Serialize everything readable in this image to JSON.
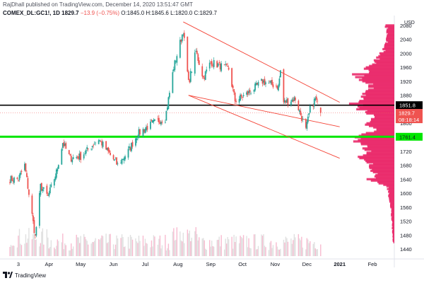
{
  "header": {
    "publisher": "RajDhall published on TradingView.com, December 14, 2020 13:51:47 GMT",
    "symbol": "COMEX_DL:GC1!, 1D",
    "last": "1829.7",
    "change": "−13.9 (−0.75%)",
    "open": "O:1845.0",
    "high": "H:1845.6",
    "low": "L:1820.0",
    "close": "C:1829.7"
  },
  "footer": {
    "brand": "TradingView"
  },
  "colors": {
    "up": "#26a69a",
    "down": "#ef5350",
    "volume_profile": "#e91e63",
    "resistance": "#000000",
    "support": "#00e600",
    "channel": "#f44336"
  },
  "chart_data": {
    "type": "candlestick",
    "currency": "USD",
    "ylim": [
      1420,
      2100
    ],
    "y_ticks": [
      1440,
      1480,
      1520,
      1560,
      1600,
      1640,
      1680,
      1720,
      1760,
      1800,
      1840,
      1880,
      1920,
      1960,
      2000,
      2040,
      2080
    ],
    "x_ticks": [
      "3",
      "Apr",
      "May",
      "Jun",
      "Jul",
      "Aug",
      "Sep",
      "Oct",
      "Nov",
      "Dec",
      "2021",
      "Feb"
    ],
    "horizontal_levels": [
      {
        "name": "resistance",
        "price": 1851.8,
        "label": "1851.8"
      },
      {
        "name": "support",
        "price": 1761.4,
        "label": "1761.4"
      }
    ],
    "price_labels": [
      {
        "name": "last-price",
        "value": "1829.7"
      },
      {
        "name": "bar-countdown",
        "value": "08:18:14"
      }
    ],
    "ohlc_anchors": [
      [
        "2020-02-24",
        1640
      ],
      [
        "2020-03-03",
        1640
      ],
      [
        "2020-03-09",
        1680
      ],
      [
        "2020-03-19",
        1475
      ],
      [
        "2020-03-24",
        1620
      ],
      [
        "2020-03-31",
        1590
      ],
      [
        "2020-04-08",
        1660
      ],
      [
        "2020-04-14",
        1745
      ],
      [
        "2020-04-21",
        1700
      ],
      [
        "2020-05-01",
        1705
      ],
      [
        "2020-05-18",
        1755
      ],
      [
        "2020-06-05",
        1680
      ],
      [
        "2020-06-15",
        1720
      ],
      [
        "2020-06-24",
        1770
      ],
      [
        "2020-07-08",
        1800
      ],
      [
        "2020-07-20",
        1815
      ],
      [
        "2020-07-28",
        1960
      ],
      [
        "2020-08-06",
        2065
      ],
      [
        "2020-08-11",
        1915
      ],
      [
        "2020-08-18",
        2005
      ],
      [
        "2020-08-25",
        1930
      ],
      [
        "2020-09-01",
        1975
      ],
      [
        "2020-09-18",
        1955
      ],
      [
        "2020-09-24",
        1865
      ],
      [
        "2020-10-06",
        1885
      ],
      [
        "2020-10-20",
        1920
      ],
      [
        "2020-11-04",
        1905
      ],
      [
        "2020-11-06",
        1950
      ],
      [
        "2020-11-09",
        1860
      ],
      [
        "2020-11-20",
        1870
      ],
      [
        "2020-11-30",
        1780
      ],
      [
        "2020-12-04",
        1840
      ],
      [
        "2020-12-09",
        1870
      ],
      [
        "2020-12-14",
        1829.7
      ]
    ],
    "channel_lines": [
      {
        "from": [
          "2020-08-06",
          2090
        ],
        "to": [
          "2021-01-01",
          1860
        ]
      },
      {
        "from": [
          "2020-08-11",
          1880
        ],
        "to": [
          "2021-01-01",
          1790
        ]
      },
      {
        "from": [
          "2020-08-11",
          1880
        ],
        "to": [
          "2021-01-01",
          1700
        ]
      }
    ],
    "volume_profile_peaks": [
      [
        2080,
        12
      ],
      [
        2040,
        10
      ],
      [
        2000,
        18
      ],
      [
        1960,
        35
      ],
      [
        1940,
        50
      ],
      [
        1920,
        42
      ],
      [
        1900,
        30
      ],
      [
        1880,
        48
      ],
      [
        1860,
        58
      ],
      [
        1840,
        52
      ],
      [
        1820,
        34
      ],
      [
        1800,
        38
      ],
      [
        1780,
        30
      ],
      [
        1760,
        55
      ],
      [
        1740,
        46
      ],
      [
        1720,
        38
      ],
      [
        1700,
        50
      ],
      [
        1680,
        32
      ],
      [
        1660,
        30
      ],
      [
        1640,
        35
      ],
      [
        1620,
        10
      ],
      [
        1600,
        8
      ],
      [
        1560,
        5
      ],
      [
        1500,
        3
      ],
      [
        1460,
        2
      ]
    ]
  }
}
